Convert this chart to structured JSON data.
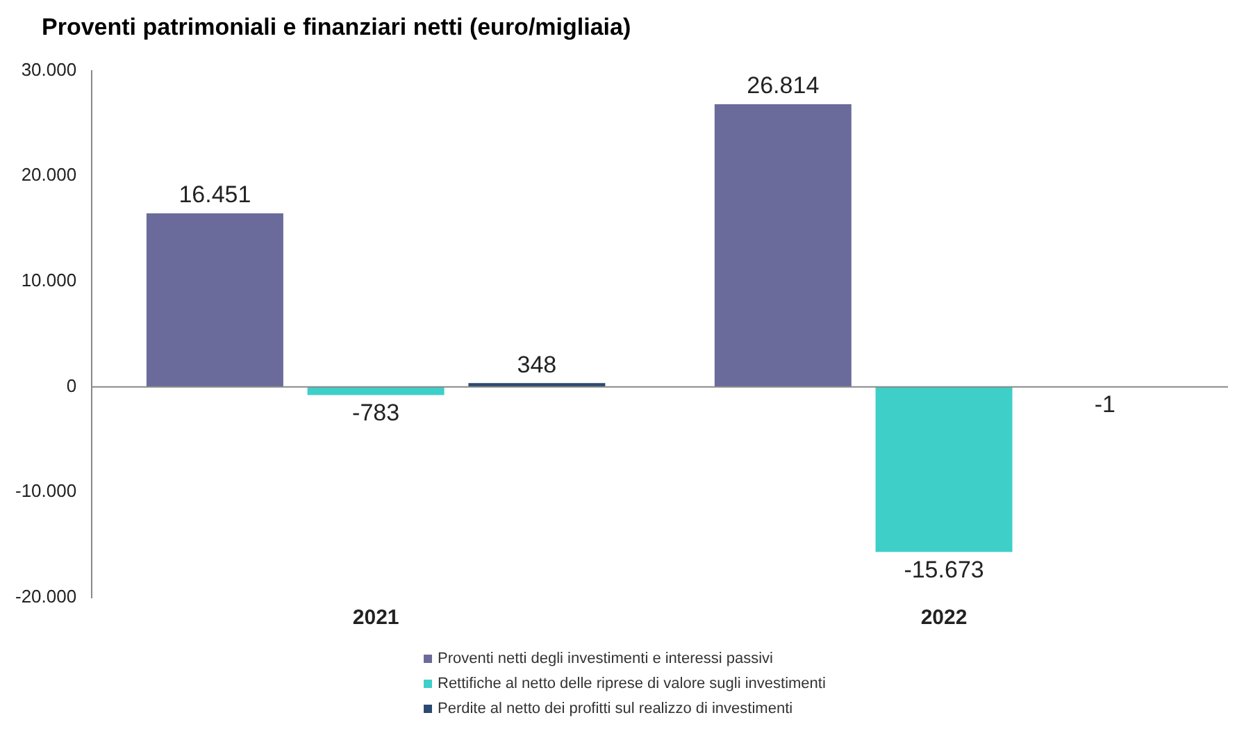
{
  "chart_data": {
    "type": "bar",
    "title": "Proventi patrimoniali e finanziari netti (euro/migliaia)",
    "categories": [
      "2021",
      "2022"
    ],
    "series": [
      {
        "name": "Proventi netti degli investimenti e interessi passivi",
        "color": "#6b6b9b",
        "values": [
          16451,
          26814
        ],
        "value_labels": [
          "16.451",
          "26.814"
        ]
      },
      {
        "name": "Rettifiche al netto delle riprese di valore sugli investimenti",
        "color": "#3ecfc9",
        "values": [
          -783,
          -15673
        ],
        "value_labels": [
          "-783",
          "-15.673"
        ]
      },
      {
        "name": "Perdite al netto dei profitti sul realizzo di investimenti",
        "color": "#2d4a70",
        "values": [
          348,
          -1
        ],
        "value_labels": [
          "348",
          "-1"
        ]
      }
    ],
    "ylim": [
      -20000,
      30000
    ],
    "yticks": [
      {
        "value": -20000,
        "label": "-20.000"
      },
      {
        "value": -10000,
        "label": "-10.000"
      },
      {
        "value": 0,
        "label": "0"
      },
      {
        "value": 10000,
        "label": "10.000"
      },
      {
        "value": 20000,
        "label": "20.000"
      },
      {
        "value": 30000,
        "label": "30.000"
      }
    ],
    "ref_lines": [
      {
        "axis": "y",
        "value": 0,
        "color": "#888888"
      }
    ],
    "grid": false,
    "legend": "bottom"
  }
}
